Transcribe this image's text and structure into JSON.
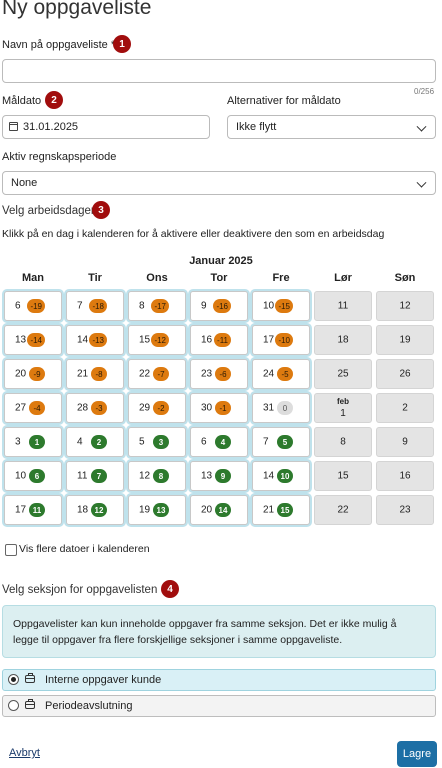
{
  "page": {
    "title": "Ny oppgaveliste"
  },
  "name_field": {
    "label": "Navn på oppgaveliste *",
    "step": "1",
    "value": "",
    "counter": "0/256"
  },
  "due_date": {
    "label": "Måldato",
    "step": "2",
    "value": "31.01.2025",
    "icon": "calendar-icon"
  },
  "due_alternatives": {
    "label": "Alternativer for måldato",
    "value": "Ikke flytt"
  },
  "period": {
    "label": "Aktiv regnskapsperiode",
    "value": "None"
  },
  "workdays": {
    "heading": "Velg arbeidsdager",
    "step": "3",
    "instruction": "Klikk på en dag i kalenderen for å aktivere eller deaktivere den som en arbeidsdag",
    "month": "Januar 2025",
    "weekdays": [
      "Man",
      "Tir",
      "Ons",
      "Tor",
      "Fre",
      "Lør",
      "Søn"
    ],
    "colors": {
      "past": "#dd7a0f",
      "future": "#2d7a2d",
      "today": "#dddddd",
      "weekend": "#e4e4e4",
      "workday_outline": "#bfe2ec"
    },
    "rows": [
      [
        {
          "day": "6",
          "badge": "-19",
          "kind": "past"
        },
        {
          "day": "7",
          "badge": "-18",
          "kind": "past"
        },
        {
          "day": "8",
          "badge": "-17",
          "kind": "past"
        },
        {
          "day": "9",
          "badge": "-16",
          "kind": "past"
        },
        {
          "day": "10",
          "badge": "-15",
          "kind": "past"
        },
        {
          "day": "11",
          "kind": "weekend"
        },
        {
          "day": "12",
          "kind": "weekend"
        }
      ],
      [
        {
          "day": "13",
          "badge": "-14",
          "kind": "past"
        },
        {
          "day": "14",
          "badge": "-13",
          "kind": "past"
        },
        {
          "day": "15",
          "badge": "-12",
          "kind": "past"
        },
        {
          "day": "16",
          "badge": "-11",
          "kind": "past"
        },
        {
          "day": "17",
          "badge": "-10",
          "kind": "past"
        },
        {
          "day": "18",
          "kind": "weekend"
        },
        {
          "day": "19",
          "kind": "weekend"
        }
      ],
      [
        {
          "day": "20",
          "badge": "-9",
          "kind": "past"
        },
        {
          "day": "21",
          "badge": "-8",
          "kind": "past"
        },
        {
          "day": "22",
          "badge": "-7",
          "kind": "past"
        },
        {
          "day": "23",
          "badge": "-6",
          "kind": "past"
        },
        {
          "day": "24",
          "badge": "-5",
          "kind": "past"
        },
        {
          "day": "25",
          "kind": "weekend"
        },
        {
          "day": "26",
          "kind": "weekend"
        }
      ],
      [
        {
          "day": "27",
          "badge": "-4",
          "kind": "past"
        },
        {
          "day": "28",
          "badge": "-3",
          "kind": "past"
        },
        {
          "day": "29",
          "badge": "-2",
          "kind": "past"
        },
        {
          "day": "30",
          "badge": "-1",
          "kind": "past"
        },
        {
          "day": "31",
          "badge": "0",
          "kind": "today"
        },
        {
          "day": "1",
          "month": "feb",
          "kind": "weekend"
        },
        {
          "day": "2",
          "kind": "weekend"
        }
      ],
      [
        {
          "day": "3",
          "badge": "1",
          "kind": "future"
        },
        {
          "day": "4",
          "badge": "2",
          "kind": "future"
        },
        {
          "day": "5",
          "badge": "3",
          "kind": "future"
        },
        {
          "day": "6",
          "badge": "4",
          "kind": "future"
        },
        {
          "day": "7",
          "badge": "5",
          "kind": "future"
        },
        {
          "day": "8",
          "kind": "weekend"
        },
        {
          "day": "9",
          "kind": "weekend"
        }
      ],
      [
        {
          "day": "10",
          "badge": "6",
          "kind": "future"
        },
        {
          "day": "11",
          "badge": "7",
          "kind": "future"
        },
        {
          "day": "12",
          "badge": "8",
          "kind": "future"
        },
        {
          "day": "13",
          "badge": "9",
          "kind": "future"
        },
        {
          "day": "14",
          "badge": "10",
          "kind": "future"
        },
        {
          "day": "15",
          "kind": "weekend"
        },
        {
          "day": "16",
          "kind": "weekend"
        }
      ],
      [
        {
          "day": "17",
          "badge": "11",
          "kind": "future"
        },
        {
          "day": "18",
          "badge": "12",
          "kind": "future"
        },
        {
          "day": "19",
          "badge": "13",
          "kind": "future"
        },
        {
          "day": "20",
          "badge": "14",
          "kind": "future"
        },
        {
          "day": "21",
          "badge": "15",
          "kind": "future"
        },
        {
          "day": "22",
          "kind": "weekend"
        },
        {
          "day": "23",
          "kind": "weekend"
        }
      ]
    ],
    "show_more_label": "Vis flere datoer i kalenderen"
  },
  "section": {
    "heading": "Velg seksjon for oppgavelisten",
    "step": "4",
    "info": "Oppgavelister kan kun inneholde oppgaver fra samme seksjon. Det er ikke mulig å legge til oppgaver fra flere forskjellige seksjoner i samme oppgaveliste.",
    "options": [
      {
        "label": "Interne oppgaver kunde",
        "selected": true,
        "icon": "briefcase-icon"
      },
      {
        "label": "Periodeavslutning",
        "selected": false,
        "icon": "briefcase-icon"
      }
    ]
  },
  "actions": {
    "cancel": "Avbryt",
    "save": "Lagre"
  }
}
